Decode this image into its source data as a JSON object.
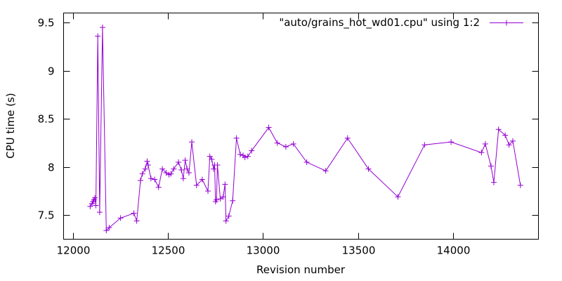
{
  "chart_data": {
    "type": "line",
    "title": "",
    "xlabel": "Revision number",
    "ylabel": "CPU time (s)",
    "xlim": [
      11950,
      14450
    ],
    "ylim": [
      7.25,
      9.6
    ],
    "xticks": [
      12000,
      12500,
      13000,
      13500,
      14000
    ],
    "yticks": [
      7.5,
      8,
      8.5,
      9,
      9.5
    ],
    "grid": false,
    "legend_position": "top-right",
    "series": [
      {
        "name": "\"auto/grains_hot_wd01.cpu\" using 1:2",
        "color": "#9400d3",
        "marker": "plus",
        "points": [
          [
            12090,
            7.59
          ],
          [
            12100,
            7.62
          ],
          [
            12105,
            7.64
          ],
          [
            12110,
            7.66
          ],
          [
            12115,
            7.68
          ],
          [
            12120,
            7.6
          ],
          [
            12130,
            9.36
          ],
          [
            12140,
            7.53
          ],
          [
            12155,
            9.45
          ],
          [
            12175,
            7.34
          ],
          [
            12190,
            7.37
          ],
          [
            12250,
            7.47
          ],
          [
            12320,
            7.52
          ],
          [
            12335,
            7.44
          ],
          [
            12355,
            7.86
          ],
          [
            12365,
            7.93
          ],
          [
            12380,
            7.98
          ],
          [
            12390,
            8.06
          ],
          [
            12395,
            8.02
          ],
          [
            12410,
            7.88
          ],
          [
            12430,
            7.87
          ],
          [
            12450,
            7.79
          ],
          [
            12470,
            7.98
          ],
          [
            12490,
            7.94
          ],
          [
            12505,
            7.92
          ],
          [
            12515,
            7.93
          ],
          [
            12530,
            7.98
          ],
          [
            12555,
            8.05
          ],
          [
            12570,
            7.97
          ],
          [
            12580,
            7.88
          ],
          [
            12590,
            8.07
          ],
          [
            12600,
            7.98
          ],
          [
            12610,
            7.94
          ],
          [
            12625,
            8.26
          ],
          [
            12650,
            7.81
          ],
          [
            12680,
            7.87
          ],
          [
            12710,
            7.75
          ],
          [
            12720,
            8.11
          ],
          [
            12730,
            8.08
          ],
          [
            12740,
            7.98
          ],
          [
            12745,
            8.02
          ],
          [
            12750,
            7.64
          ],
          [
            12755,
            7.66
          ],
          [
            12760,
            8.02
          ],
          [
            12775,
            7.67
          ],
          [
            12790,
            7.69
          ],
          [
            12800,
            7.82
          ],
          [
            12805,
            7.44
          ],
          [
            12820,
            7.49
          ],
          [
            12840,
            7.65
          ],
          [
            12860,
            8.3
          ],
          [
            12880,
            8.13
          ],
          [
            12895,
            8.12
          ],
          [
            12905,
            8.1
          ],
          [
            12920,
            8.11
          ],
          [
            12940,
            8.17
          ],
          [
            13030,
            8.41
          ],
          [
            13075,
            8.25
          ],
          [
            13120,
            8.21
          ],
          [
            13160,
            8.24
          ],
          [
            13230,
            8.05
          ],
          [
            13330,
            7.96
          ],
          [
            13445,
            8.3
          ],
          [
            13555,
            7.98
          ],
          [
            13710,
            7.69
          ],
          [
            13850,
            8.23
          ],
          [
            13990,
            8.26
          ],
          [
            14150,
            8.15
          ],
          [
            14170,
            8.24
          ],
          [
            14200,
            8.01
          ],
          [
            14215,
            7.84
          ],
          [
            14240,
            8.39
          ],
          [
            14275,
            8.33
          ],
          [
            14295,
            8.23
          ],
          [
            14315,
            8.27
          ],
          [
            14355,
            7.81
          ]
        ]
      }
    ]
  }
}
